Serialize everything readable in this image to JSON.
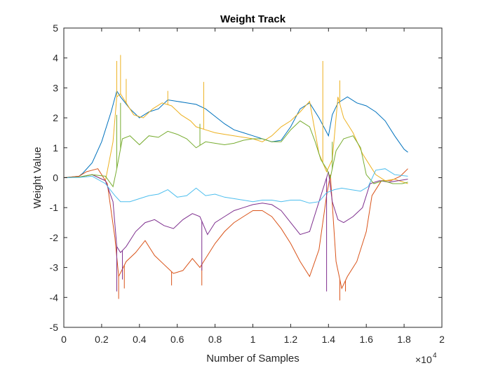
{
  "chart_data": {
    "type": "line",
    "title": "Weight Track",
    "xlabel": "Number of Samples",
    "ylabel": "Weight Value",
    "x_exponent_label": "×10",
    "x_exponent_power": "4",
    "xlim": [
      0,
      20000
    ],
    "ylim": [
      -5,
      5
    ],
    "x_ticks": [
      0,
      2000,
      4000,
      6000,
      8000,
      10000,
      12000,
      14000,
      16000,
      18000,
      20000
    ],
    "x_tick_labels": [
      "0",
      "0.2",
      "0.4",
      "0.6",
      "0.8",
      "1",
      "1.2",
      "1.4",
      "1.6",
      "1.8",
      "2"
    ],
    "y_ticks": [
      -5,
      -4,
      -3,
      -2,
      -1,
      0,
      1,
      2,
      3,
      4,
      5
    ],
    "y_tick_labels": [
      "-5",
      "-4",
      "-3",
      "-2",
      "-1",
      "0",
      "1",
      "2",
      "3",
      "4",
      "5"
    ],
    "grid": false,
    "legend": "none",
    "series": [
      {
        "color": "#0072BD",
        "x": [
          0,
          800,
          1000,
          1500,
          2000,
          2500,
          2800,
          3000,
          3500,
          4000,
          4500,
          5000,
          5500,
          6000,
          6500,
          7000,
          7500,
          8000,
          8500,
          9000,
          9500,
          10000,
          10500,
          11000,
          11500,
          12000,
          12500,
          13000,
          13500,
          14000,
          14200,
          14500,
          15000,
          15500,
          16000,
          16500,
          17000,
          17500,
          18000,
          18200
        ],
        "y": [
          0,
          0.05,
          0.15,
          0.5,
          1.2,
          2.2,
          2.9,
          2.7,
          2.3,
          2.0,
          2.2,
          2.3,
          2.6,
          2.55,
          2.5,
          2.45,
          2.3,
          2.05,
          1.8,
          1.6,
          1.5,
          1.4,
          1.3,
          1.2,
          1.25,
          1.7,
          2.3,
          2.5,
          2.0,
          1.4,
          2.1,
          2.5,
          2.7,
          2.5,
          2.4,
          2.2,
          1.9,
          1.4,
          0.95,
          0.85
        ],
        "spikes": []
      },
      {
        "color": "#D95319",
        "x": [
          0,
          800,
          1200,
          1800,
          2300,
          2700,
          2900,
          3300,
          3800,
          4300,
          4800,
          5300,
          5800,
          6300,
          6800,
          7200,
          7600,
          8000,
          8500,
          9000,
          9500,
          10000,
          10500,
          11000,
          11500,
          12000,
          12500,
          13000,
          13500,
          13900,
          14100,
          14400,
          14700,
          15000,
          15500,
          16000,
          16300,
          16800,
          17300,
          17800,
          18200
        ],
        "y": [
          0,
          0.05,
          0.2,
          0.3,
          -0.2,
          -2.0,
          -3.3,
          -2.8,
          -2.5,
          -2.1,
          -2.6,
          -2.9,
          -3.2,
          -3.1,
          -2.7,
          -3.0,
          -2.6,
          -2.2,
          -1.8,
          -1.5,
          -1.3,
          -1.1,
          -1.1,
          -1.3,
          -1.7,
          -2.2,
          -2.8,
          -3.3,
          -2.4,
          -0.6,
          0.1,
          -2.8,
          -3.7,
          -3.3,
          -2.8,
          -1.8,
          -0.6,
          -0.1,
          -0.1,
          0.05,
          0.3
        ],
        "spikes": [
          [
            2900,
            -4.05
          ],
          [
            3200,
            -3.7
          ],
          [
            5700,
            -3.6
          ],
          [
            7300,
            -3.6
          ],
          [
            14600,
            -4.1
          ],
          [
            14900,
            -3.8
          ]
        ]
      },
      {
        "color": "#EDB120",
        "x": [
          0,
          800,
          1500,
          2200,
          2600,
          2800,
          3000,
          3300,
          3700,
          4200,
          4700,
          5200,
          5700,
          6200,
          6700,
          7000,
          7500,
          8000,
          8500,
          9000,
          9500,
          10000,
          10500,
          11000,
          11500,
          12000,
          12500,
          13000,
          13500,
          13900,
          14200,
          14500,
          14800,
          15300,
          15800,
          16100,
          16500,
          17000,
          17500,
          18200
        ],
        "y": [
          0,
          0.02,
          0.1,
          -0.1,
          1.2,
          2.7,
          2.8,
          2.5,
          2.1,
          2.0,
          2.3,
          2.5,
          2.4,
          2.1,
          1.9,
          1.7,
          1.6,
          1.5,
          1.45,
          1.4,
          1.35,
          1.3,
          1.2,
          1.4,
          1.7,
          1.9,
          2.2,
          2.55,
          0.8,
          0.2,
          0.6,
          2.7,
          2.0,
          1.5,
          0.8,
          0.5,
          0.1,
          -0.1,
          -0.05,
          -0.2
        ],
        "spikes": [
          [
            2800,
            3.9
          ],
          [
            3000,
            4.1
          ],
          [
            3300,
            3.3
          ],
          [
            5500,
            2.9
          ],
          [
            7400,
            3.2
          ],
          [
            13700,
            3.9
          ],
          [
            14600,
            3.25
          ]
        ]
      },
      {
        "color": "#7E2F8E",
        "x": [
          0,
          800,
          1500,
          2200,
          2600,
          2800,
          3000,
          3300,
          3800,
          4300,
          4800,
          5300,
          5800,
          6300,
          6800,
          7200,
          7600,
          8000,
          8500,
          9000,
          9500,
          10000,
          10500,
          11000,
          11500,
          12000,
          12500,
          13000,
          13500,
          13800,
          14000,
          14200,
          14500,
          14800,
          15300,
          15800,
          16200,
          16700,
          17200,
          17700,
          18200
        ],
        "y": [
          0,
          0.02,
          0.1,
          -0.1,
          -0.8,
          -2.3,
          -2.5,
          -2.3,
          -1.8,
          -1.5,
          -1.4,
          -1.6,
          -1.7,
          -1.4,
          -1.2,
          -1.3,
          -1.9,
          -1.5,
          -1.3,
          -1.1,
          -1.0,
          -0.9,
          -0.85,
          -0.9,
          -1.1,
          -1.5,
          -1.9,
          -1.8,
          -0.8,
          -0.2,
          0.2,
          -0.8,
          -1.4,
          -1.5,
          -1.3,
          -1.0,
          -0.2,
          -0.1,
          -0.15,
          -0.1,
          -0.05
        ],
        "spikes": [
          [
            2800,
            -3.8
          ],
          [
            3100,
            -3.4
          ],
          [
            7300,
            -3.1
          ],
          [
            13900,
            -3.8
          ]
        ]
      },
      {
        "color": "#77AC30",
        "x": [
          0,
          800,
          1500,
          2200,
          2600,
          2800,
          3100,
          3500,
          4000,
          4500,
          5000,
          5500,
          6000,
          6500,
          7000,
          7500,
          8000,
          8500,
          9000,
          9500,
          10000,
          10500,
          11000,
          11500,
          12000,
          12500,
          13000,
          13300,
          13600,
          13900,
          14100,
          14400,
          14800,
          15300,
          15700,
          16000,
          16400,
          16900,
          17400,
          17900,
          18200
        ],
        "y": [
          0,
          0.02,
          0.1,
          0.05,
          -0.3,
          0.3,
          1.3,
          1.4,
          1.1,
          1.4,
          1.35,
          1.55,
          1.45,
          1.3,
          1.0,
          1.2,
          1.15,
          1.1,
          1.15,
          1.25,
          1.3,
          1.3,
          1.2,
          1.2,
          1.6,
          1.9,
          1.7,
          1.2,
          0.6,
          0.3,
          0.0,
          0.9,
          1.3,
          1.4,
          1.0,
          0.1,
          -0.2,
          -0.1,
          -0.2,
          -0.2,
          -0.15
        ],
        "spikes": [
          [
            2800,
            2.1
          ],
          [
            3000,
            2.5
          ],
          [
            7200,
            1.8
          ],
          [
            14200,
            1.2
          ]
        ]
      },
      {
        "color": "#4DBEEE",
        "x": [
          0,
          800,
          1500,
          2200,
          2700,
          3000,
          3500,
          4000,
          4500,
          5000,
          5500,
          6000,
          6500,
          7000,
          7500,
          8000,
          8500,
          9000,
          9500,
          10000,
          10500,
          11000,
          11500,
          12000,
          12500,
          13000,
          13500,
          13900,
          14300,
          14700,
          15200,
          15700,
          16100,
          16500,
          17000,
          17500,
          18200
        ],
        "y": [
          0,
          0.01,
          0.05,
          -0.2,
          -0.6,
          -0.8,
          -0.8,
          -0.7,
          -0.6,
          -0.55,
          -0.4,
          -0.65,
          -0.6,
          -0.35,
          -0.6,
          -0.55,
          -0.65,
          -0.7,
          -0.75,
          -0.8,
          -0.75,
          -0.75,
          -0.8,
          -0.75,
          -0.75,
          -0.85,
          -0.8,
          -0.5,
          -0.4,
          -0.35,
          -0.4,
          -0.45,
          -0.3,
          0.25,
          0.3,
          0.1,
          0.05
        ],
        "spikes": []
      }
    ]
  }
}
